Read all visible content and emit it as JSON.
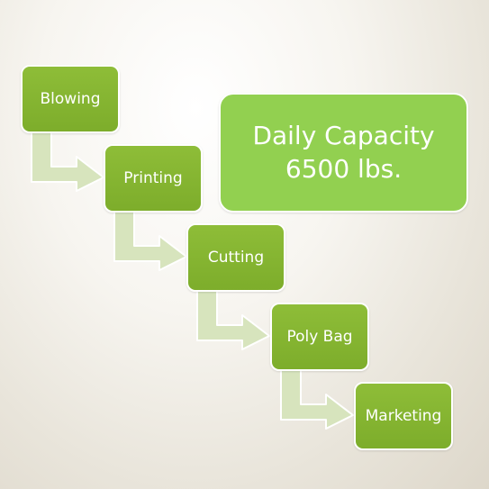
{
  "flow": {
    "steps": [
      {
        "label": "Blowing"
      },
      {
        "label": "Printing"
      },
      {
        "label": "Cutting"
      },
      {
        "label": "Poly Bag"
      },
      {
        "label": "Marketing"
      }
    ]
  },
  "capacity": {
    "line1": "Daily Capacity",
    "line2": "6500 lbs."
  },
  "colors": {
    "box_fill": "#7fb02e",
    "capacity_fill": "#92d050",
    "arrow_fill": "#d7e4bd",
    "text": "#ffffff"
  }
}
